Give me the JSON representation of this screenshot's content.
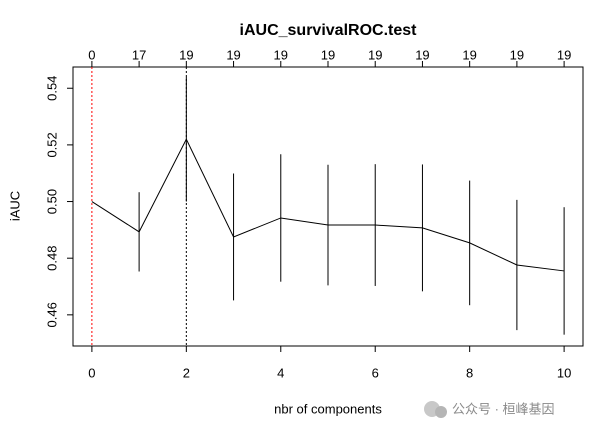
{
  "chart_data": {
    "type": "line",
    "title": "iAUC_survivalROC.test",
    "x_label": "nbr of components",
    "y_label": "iAUC",
    "x": [
      0,
      1,
      2,
      3,
      4,
      5,
      6,
      7,
      8,
      9,
      10
    ],
    "series": [
      {
        "name": "iAUC",
        "color": "#000000",
        "values": [
          0.5,
          0.4893,
          0.522,
          0.4875,
          0.4942,
          0.4917,
          0.4917,
          0.4907,
          0.4854,
          0.4776,
          0.4755
        ],
        "errors": [
          null,
          0.014,
          0.022,
          0.0224,
          0.0225,
          0.0213,
          0.0215,
          0.0224,
          0.022,
          0.023,
          0.0225
        ]
      }
    ],
    "top_labels": [
      0,
      17,
      19,
      19,
      19,
      19,
      19,
      19,
      19,
      19,
      19
    ],
    "vlines": [
      {
        "x": 0,
        "color": "#ff0000"
      },
      {
        "x": 2,
        "color": "#000000"
      }
    ],
    "xlim": [
      -0.4,
      10.4
    ],
    "ylim": [
      0.449,
      0.5475
    ],
    "xticks": [
      0,
      2,
      4,
      6,
      8,
      10
    ],
    "yticks": [
      0.46,
      0.48,
      {
        "value": 0.5,
        "label": "0.50"
      },
      0.52,
      0.54
    ],
    "grid": false
  },
  "watermark": "公众号 · 桓峰基因"
}
